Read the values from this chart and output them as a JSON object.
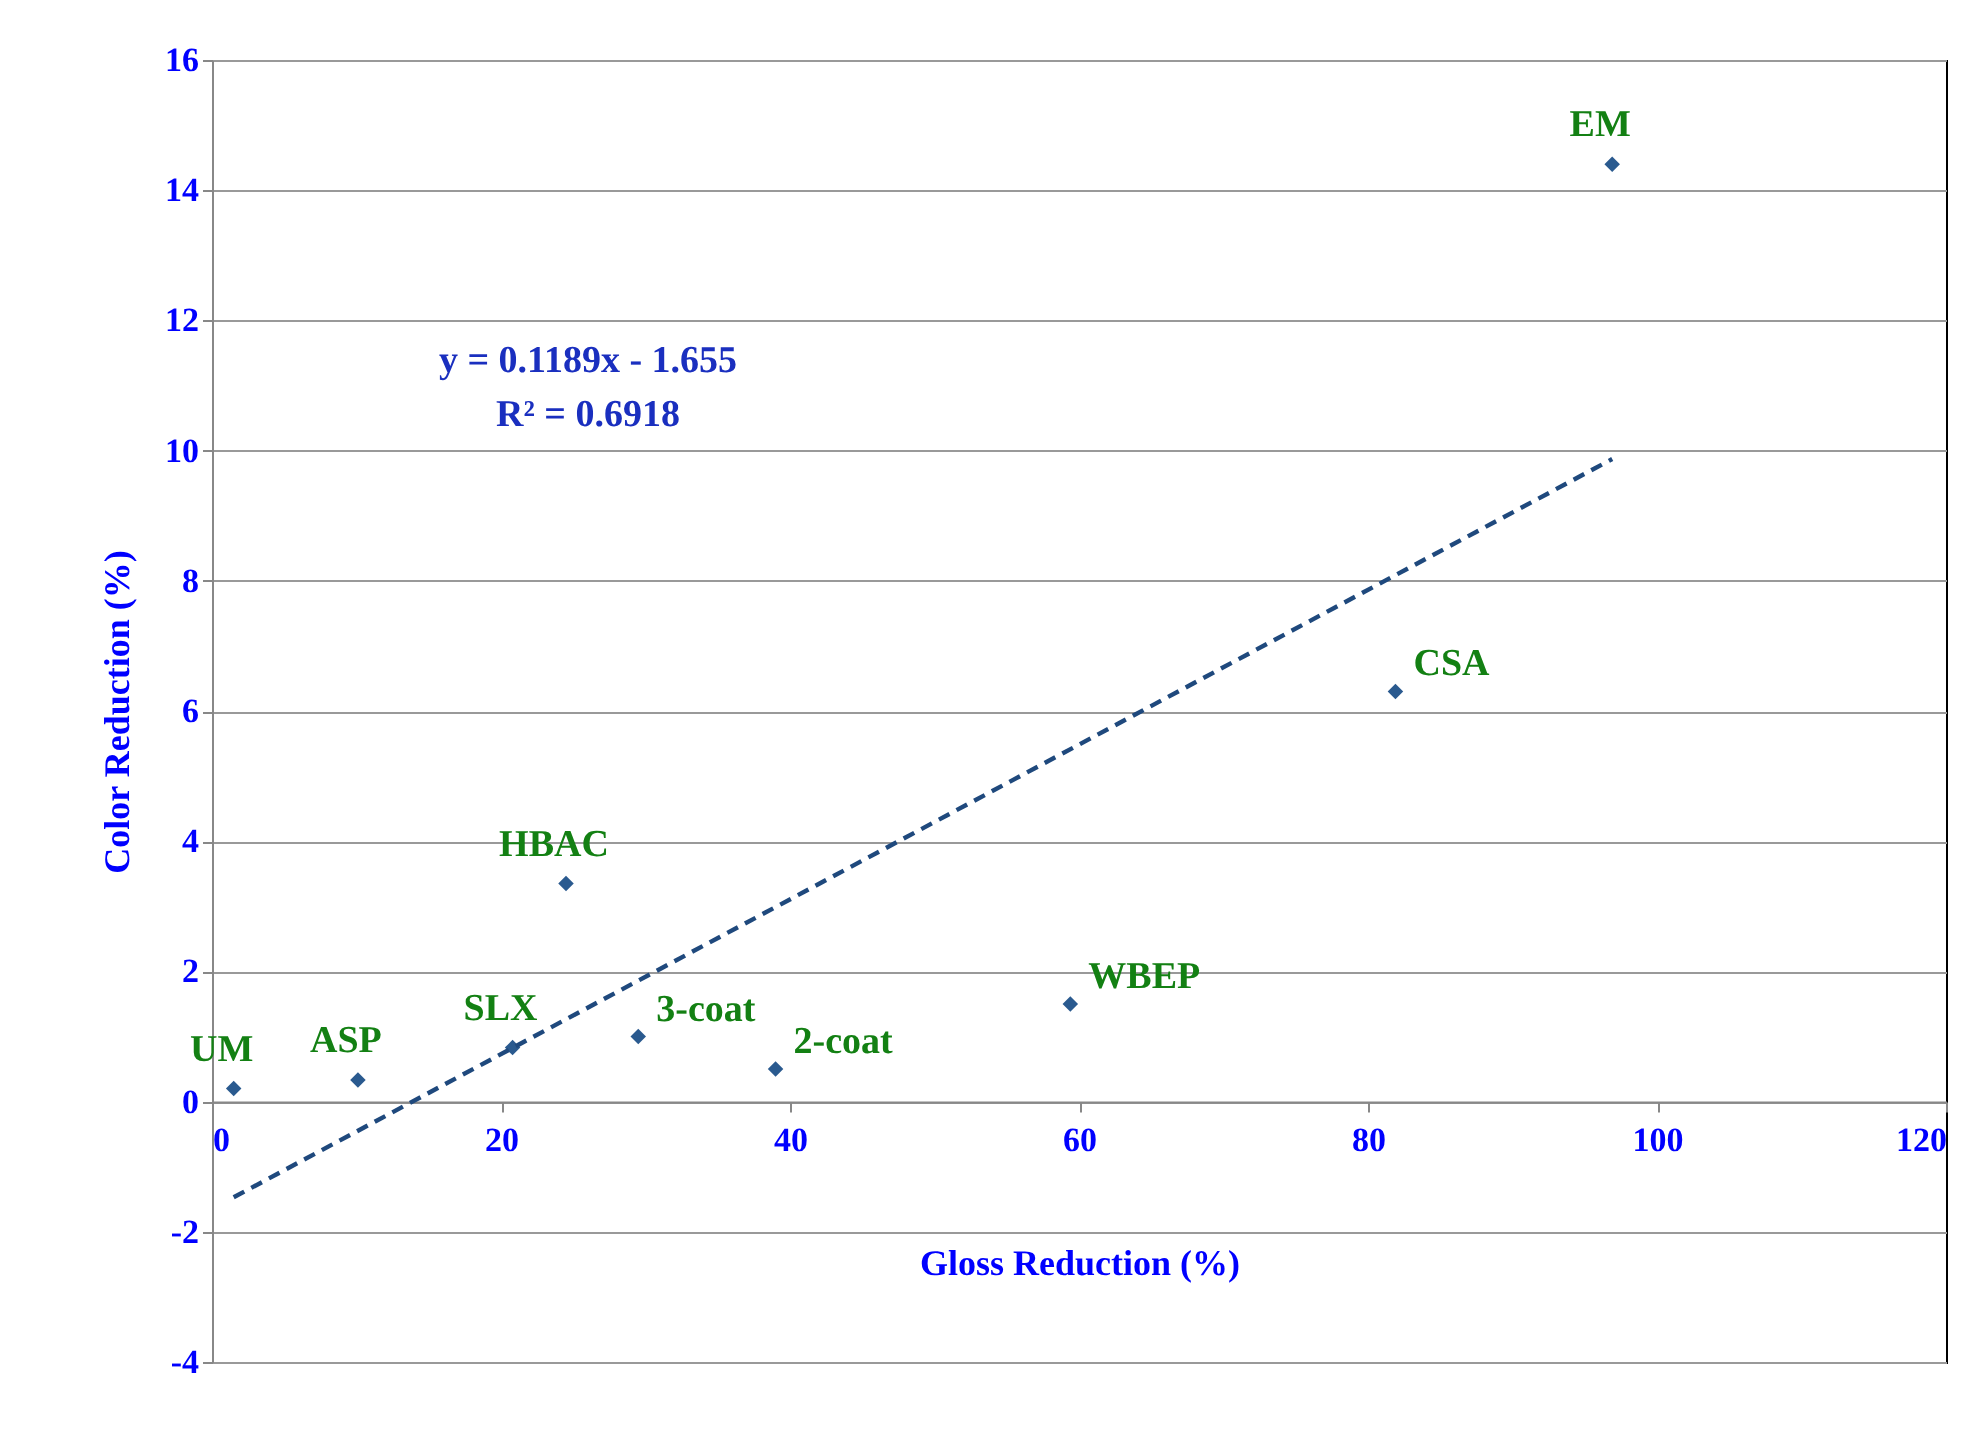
{
  "chart_data": {
    "type": "scatter",
    "xlabel": "Gloss Reduction (%)",
    "ylabel": "Color Reduction (%)",
    "xlim": [
      0,
      120
    ],
    "xticks": [
      0,
      20,
      40,
      60,
      80,
      100,
      120
    ],
    "ylim": [
      -4,
      16
    ],
    "yticks": [
      -4,
      -2,
      0,
      2,
      4,
      6,
      8,
      10,
      12,
      14,
      16
    ],
    "grid": "y",
    "marker": "diamond",
    "series": [
      {
        "color": "#2a5a8f",
        "x": [
          1.5,
          10.1,
          20.8,
          24.5,
          29.5,
          39.0,
          59.4,
          81.9,
          96.9
        ],
        "values": [
          0.2,
          0.33,
          0.83,
          3.35,
          1.0,
          0.5,
          1.5,
          6.3,
          14.4
        ]
      },
      {
        "type": "line",
        "color": "#1f497d",
        "line_style": "dashed",
        "marker": "none",
        "x": [
          1.5,
          96.9
        ],
        "values": [
          -1.47,
          9.87
        ]
      }
    ],
    "annotations": [
      {
        "text": "UM",
        "x": 1.5,
        "y": 0.2
      },
      {
        "text": "ASP",
        "x": 10.1,
        "y": 0.33
      },
      {
        "text": "SLX",
        "x": 20.8,
        "y": 0.83
      },
      {
        "text": "HBAC",
        "x": 24.5,
        "y": 3.35
      },
      {
        "text": "3-coat",
        "x": 29.5,
        "y": 1.0
      },
      {
        "text": "2-coat",
        "x": 39.0,
        "y": 0.5
      },
      {
        "text": "WBEP",
        "x": 59.4,
        "y": 1.5
      },
      {
        "text": "CSA",
        "x": 81.9,
        "y": 6.3
      },
      {
        "text": "EM",
        "x": 96.9,
        "y": 14.4
      },
      "y = 0.1189x - 1.655",
      "R² = 0.6918"
    ]
  }
}
